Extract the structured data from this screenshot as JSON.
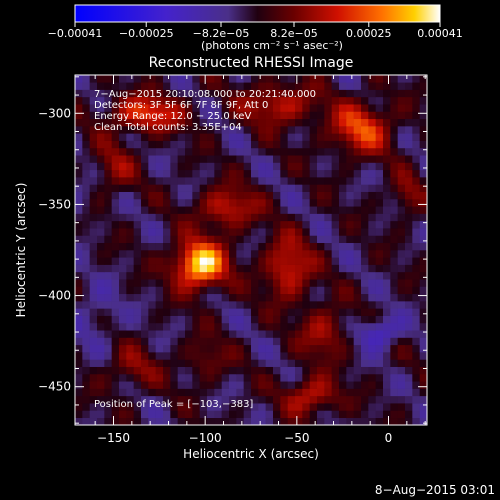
{
  "chart_data": {
    "type": "heatmap",
    "title": "Reconstructed RHESSI Image",
    "xlabel": "Heliocentric X (arcsec)",
    "ylabel": "Heliocentric Y (arcsec)",
    "xlim": [
      -171,
      21
    ],
    "ylim": [
      -471,
      -279
    ],
    "x_ticks": [
      -150,
      -100,
      -50,
      0
    ],
    "x_tick_labels": [
      "−150",
      "−100",
      "−50",
      "0"
    ],
    "y_ticks": [
      -300,
      -350,
      -400,
      -450
    ],
    "y_tick_labels": [
      "−300",
      "−350",
      "−400",
      "−450"
    ],
    "colorbar": {
      "range": [
        -0.00041,
        0.00041
      ],
      "ticks": [
        -0.00041,
        -0.00025,
        -8.2e-05,
        8.2e-05,
        0.00025,
        0.00041
      ],
      "tick_labels": [
        "−0.00041",
        "−0.00025",
        "−8.2e−05",
        "8.2e−05",
        "0.00025",
        "0.00041"
      ],
      "units": "(photons cm⁻² s⁻¹ asec⁻²)"
    },
    "annotations": [
      "7−Aug−2015 20:10:08.000 to 20:21:40.000",
      "Detectors: 3F 5F 6F 7F 8F 9F, Att 0",
      "Energy Range: 12.0 − 25.0 keV",
      "Clean    Total counts: 3.35E+04"
    ],
    "peak_label": "Position of Peak = [−103,−383]",
    "peak": [
      -103,
      -383
    ],
    "timestamp": "8−Aug−2015 03:01",
    "sources": [
      {
        "x": -103,
        "y": -383,
        "amp": 0.00041,
        "sx": 10,
        "sy": 9
      },
      {
        "x": -88,
        "y": -352,
        "amp": 0.0002,
        "sx": 11,
        "sy": 8
      },
      {
        "x": -132,
        "y": -300,
        "amp": 0.00024,
        "sx": 14,
        "sy": 7
      },
      {
        "x": -60,
        "y": -295,
        "amp": 0.00019,
        "sx": 14,
        "sy": 8
      },
      {
        "x": -15,
        "y": -308,
        "amp": 0.00024,
        "sx": 12,
        "sy": 10
      },
      {
        "x": -55,
        "y": -385,
        "amp": 0.00022,
        "sx": 9,
        "sy": 12
      },
      {
        "x": -35,
        "y": -420,
        "amp": 0.00016,
        "sx": 9,
        "sy": 10
      },
      {
        "x": -42,
        "y": -455,
        "amp": 0.0002,
        "sx": 10,
        "sy": 7
      },
      {
        "x": -150,
        "y": -330,
        "amp": 0.00012,
        "sx": 8,
        "sy": 10
      },
      {
        "x": -140,
        "y": -440,
        "amp": 0.00012,
        "sx": 10,
        "sy": 8
      },
      {
        "x": -100,
        "y": -435,
        "amp": 0.00011,
        "sx": 8,
        "sy": 8
      },
      {
        "x": 10,
        "y": -345,
        "amp": 0.00012,
        "sx": 6,
        "sy": 8
      },
      {
        "x": -5,
        "y": -420,
        "amp": -0.00018,
        "sx": 8,
        "sy": 6
      },
      {
        "x": -160,
        "y": -410,
        "amp": -8e-05,
        "sx": 10,
        "sy": 12
      },
      {
        "x": -170,
        "y": -350,
        "amp": -6e-05,
        "sx": 6,
        "sy": 10
      }
    ]
  }
}
